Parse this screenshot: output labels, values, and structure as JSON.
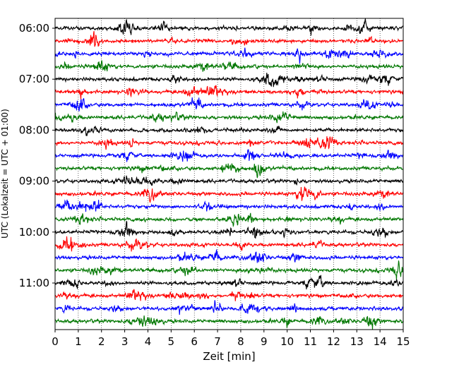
{
  "chart_data": {
    "type": "line",
    "subtype": "helicorder",
    "xlabel": "Zeit  [min]",
    "ylabel": "UTC (Lokalzeit = UTC + 01:00)",
    "xlim": [
      0,
      15
    ],
    "x_ticks": [
      "0",
      "1",
      "2",
      "3",
      "4",
      "5",
      "6",
      "7",
      "8",
      "9",
      "10",
      "11",
      "12",
      "13",
      "14",
      "15"
    ],
    "y_tick_labels": [
      "06:00",
      "07:00",
      "08:00",
      "09:00",
      "10:00",
      "11:00"
    ],
    "grid": "vertical dotted",
    "trace_count": 24,
    "trace_start_time": "06:00",
    "trace_interval_minutes": 15,
    "trace_colors": [
      "#000000",
      "#ff0000",
      "#0000ff",
      "#007700"
    ],
    "traces": [
      {
        "label": "06:00"
      },
      {
        "label": "06:15"
      },
      {
        "label": "06:30"
      },
      {
        "label": "06:45"
      },
      {
        "label": "07:00"
      },
      {
        "label": "07:15"
      },
      {
        "label": "07:30"
      },
      {
        "label": "07:45"
      },
      {
        "label": "08:00"
      },
      {
        "label": "08:15"
      },
      {
        "label": "08:30"
      },
      {
        "label": "08:45"
      },
      {
        "label": "09:00"
      },
      {
        "label": "09:15"
      },
      {
        "label": "09:30"
      },
      {
        "label": "09:45"
      },
      {
        "label": "10:00"
      },
      {
        "label": "10:15"
      },
      {
        "label": "10:30"
      },
      {
        "label": "10:45"
      },
      {
        "label": "11:00"
      },
      {
        "label": "11:15"
      },
      {
        "label": "11:30"
      },
      {
        "label": "11:45"
      }
    ]
  }
}
